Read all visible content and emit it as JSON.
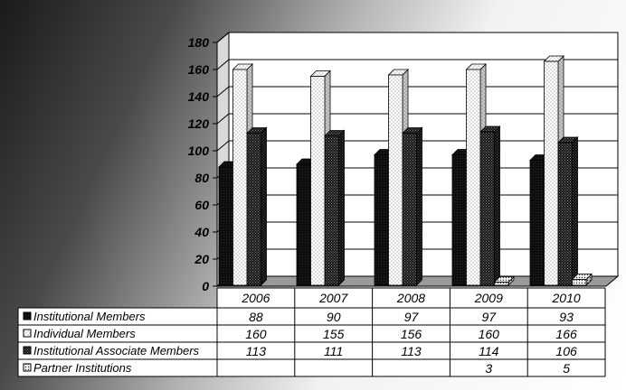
{
  "chart_data": {
    "type": "bar",
    "categories": [
      "2006",
      "2007",
      "2008",
      "2009",
      "2010"
    ],
    "series": [
      {
        "name": "Institutional Members",
        "values": [
          88,
          90,
          97,
          97,
          93
        ],
        "pattern": "solid-black"
      },
      {
        "name": "Individual Members",
        "values": [
          160,
          155,
          156,
          160,
          166
        ],
        "pattern": "white-dots"
      },
      {
        "name": "Institutional Associate Members",
        "values": [
          113,
          111,
          113,
          114,
          106
        ],
        "pattern": "dark-check"
      },
      {
        "name": "Partner Institutions",
        "values": [
          null,
          null,
          null,
          3,
          5
        ],
        "pattern": "light-dots"
      }
    ],
    "yticks": [
      "180",
      "160",
      "140",
      "120",
      "100",
      "80",
      "60",
      "40",
      "20",
      "0"
    ],
    "ylim": [
      0,
      180
    ],
    "grid": true,
    "legend": "data-table-below",
    "table_values": [
      [
        "88",
        "90",
        "97",
        "97",
        "93"
      ],
      [
        "160",
        "155",
        "156",
        "160",
        "166"
      ],
      [
        "113",
        "111",
        "113",
        "114",
        "106"
      ],
      [
        "",
        "",
        "",
        "3",
        "5"
      ]
    ]
  }
}
